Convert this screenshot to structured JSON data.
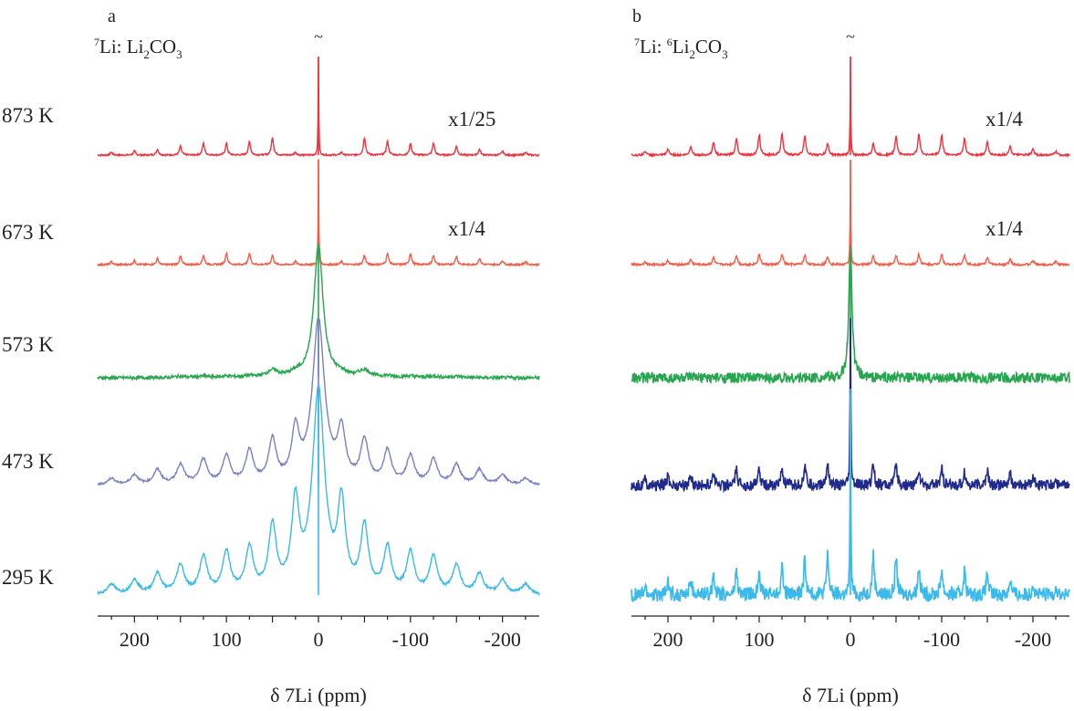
{
  "colors": {
    "873 K": "#f0303c",
    "673 K": "#f85a45",
    "573 K": "#27a64f",
    "473 K": "#7a80c4",
    "295 K": "#3ab9ea",
    "473 K (b)": "#1f2a8c"
  },
  "chart_data": [
    {
      "type": "line",
      "panel_label": "a",
      "title_parts": {
        "sup": "7",
        "pre": "Li: Li",
        "sub": "2",
        "mid": "CO",
        "sub2": "3"
      },
      "title": "7Li: Li2CO3",
      "top_mark": "~",
      "xlabel": "δ 7Li (ppm)",
      "xlim": [
        240,
        -240
      ],
      "xticks": [
        200,
        100,
        0,
        -100,
        -200
      ],
      "xtick_labels": [
        "200",
        "100",
        "0",
        "-100",
        "-200"
      ],
      "sideband_spacing_ppm": 25,
      "series": [
        {
          "name": "873 K",
          "scale_label": "x1/25",
          "peak_linewidth_ppm": 0.4,
          "center_intensity": 1.0,
          "sideband_intensity": [
            0.03,
            0.18,
            0.14,
            0.12,
            0.12,
            0.09,
            0.06,
            0.04,
            0.03
          ],
          "noise": 0.008
        },
        {
          "name": "673 K",
          "scale_label": "x1/4",
          "peak_linewidth_ppm": 0.4,
          "center_intensity": 1.0,
          "sideband_intensity": [
            0.03,
            0.09,
            0.11,
            0.11,
            0.09,
            0.08,
            0.06,
            0.04,
            0.03
          ],
          "noise": 0.008
        },
        {
          "name": "573 K",
          "scale_label": "",
          "peak_linewidth_ppm": 6,
          "center_intensity": 1.0,
          "sideband_intensity": [
            0.02,
            0.05,
            0.01,
            0.01,
            0.01,
            0.01,
            0.0,
            0.0,
            0.0
          ],
          "noise": 0.012
        },
        {
          "name": "473 K",
          "scale_label": "",
          "peak_linewidth_ppm": 8,
          "center_intensity": 1.0,
          "sideband_intensity": [
            0.3,
            0.26,
            0.2,
            0.17,
            0.15,
            0.12,
            0.09,
            0.06,
            0.04
          ],
          "noise": 0.006
        },
        {
          "name": "295 K",
          "scale_label": "",
          "peak_linewidth_ppm": 8,
          "center_intensity": 1.0,
          "sideband_intensity": [
            0.42,
            0.32,
            0.22,
            0.2,
            0.18,
            0.14,
            0.1,
            0.07,
            0.05
          ],
          "noise": 0.006
        }
      ]
    },
    {
      "type": "line",
      "panel_label": "b",
      "title_parts": {
        "sup": "7",
        "pre": "Li: ",
        "sup2": "6",
        "pre2": "Li",
        "sub": "2",
        "mid": "CO",
        "sub2": "3"
      },
      "title": "7Li: 6Li2CO3",
      "top_mark": "~",
      "xlabel": "δ 7Li (ppm)",
      "xlim": [
        240,
        -240
      ],
      "xticks": [
        200,
        100,
        0,
        -100,
        -200
      ],
      "xtick_labels": [
        "200",
        "100",
        "0",
        "-100",
        "-200"
      ],
      "sideband_spacing_ppm": 25,
      "series": [
        {
          "name": "873 K",
          "scale_label": "x1/4",
          "peak_linewidth_ppm": 0.4,
          "center_intensity": 1.0,
          "sideband_intensity": [
            0.12,
            0.2,
            0.22,
            0.2,
            0.17,
            0.13,
            0.09,
            0.06,
            0.04
          ],
          "noise": 0.01
        },
        {
          "name": "673 K",
          "scale_label": "x1/4",
          "peak_linewidth_ppm": 0.4,
          "center_intensity": 1.0,
          "sideband_intensity": [
            0.08,
            0.09,
            0.1,
            0.1,
            0.09,
            0.07,
            0.05,
            0.04,
            0.03
          ],
          "noise": 0.01
        },
        {
          "name": "573 K",
          "scale_label": "",
          "peak_linewidth_ppm": 2,
          "center_intensity": 1.0,
          "sideband_intensity": [
            0.0,
            0.0,
            0.0,
            0.0,
            0.0,
            0.0,
            0.0,
            0.0,
            0.0
          ],
          "noise": 0.04
        },
        {
          "name": "473 K",
          "scale_label": "",
          "peak_linewidth_ppm": 0.5,
          "center_intensity": 1.0,
          "sideband_intensity": [
            0.14,
            0.13,
            0.1,
            0.1,
            0.09,
            0.09,
            0.07,
            0.06,
            0.04
          ],
          "noise": 0.035
        },
        {
          "name": "295 K",
          "scale_label": "",
          "peak_linewidth_ppm": 0.5,
          "center_intensity": 1.0,
          "sideband_intensity": [
            0.2,
            0.18,
            0.14,
            0.13,
            0.12,
            0.11,
            0.08,
            0.06,
            0.04
          ],
          "noise": 0.035
        }
      ]
    }
  ]
}
